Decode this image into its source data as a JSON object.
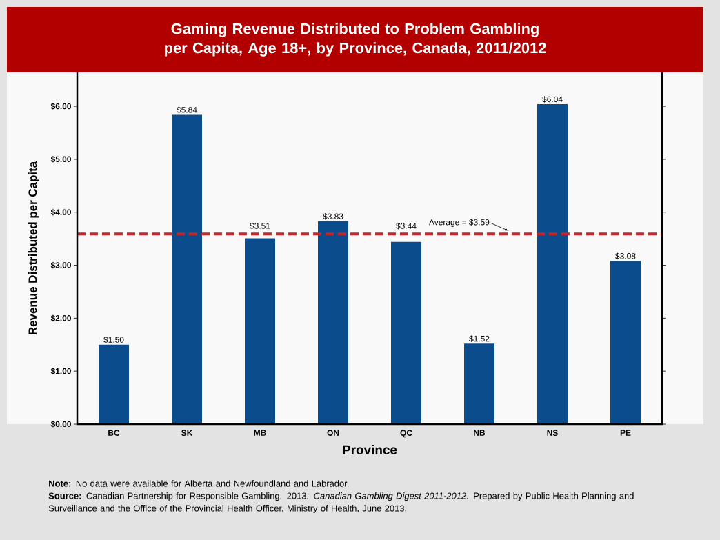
{
  "chart_data": {
    "type": "bar",
    "title": "Gaming Revenue Distributed to Problem Gambling per Capita, Age 18+, by Province, Canada, 2011/2012",
    "xlabel": "Province",
    "ylabel": "Revenue Distributed per Capita",
    "categories": [
      "BC",
      "SK",
      "MB",
      "ON",
      "QC",
      "NB",
      "NS",
      "PE"
    ],
    "values": [
      1.5,
      5.84,
      3.51,
      3.83,
      3.44,
      1.52,
      6.04,
      3.08
    ],
    "value_labels": [
      "$1.50",
      "$5.84",
      "$3.51",
      "$3.83",
      "$3.44",
      "$1.52",
      "$6.04",
      "$3.08"
    ],
    "color": "#0b4d8c",
    "ylim": [
      0,
      6.64
    ],
    "yticks": [
      {
        "value": 0,
        "label": "$0.00"
      },
      {
        "value": 1,
        "label": "$1.00"
      },
      {
        "value": 2,
        "label": "$2.00"
      },
      {
        "value": 3,
        "label": "$3.00"
      },
      {
        "value": 4,
        "label": "$4.00"
      },
      {
        "value": 5,
        "label": "$5.00"
      },
      {
        "value": 6,
        "label": "$6.00"
      }
    ],
    "ref_lines": [
      {
        "axis": "y",
        "value": 3.59,
        "label": "Average = $3.59",
        "color": "#c0262d",
        "line_style": "dashed"
      }
    ],
    "annotations": [
      "**Note:** No data were available for Alberta and Newfoundland and Labrador.",
      "**Source:** Canadian Partnership for Responsible Gambling. 2013. *Canadian Gambling Digest 2011-2012*. Prepared by Public Health Planning and Surveillance and the Office of the Provincial Health Officer, Ministry of Health, June 2013."
    ]
  }
}
